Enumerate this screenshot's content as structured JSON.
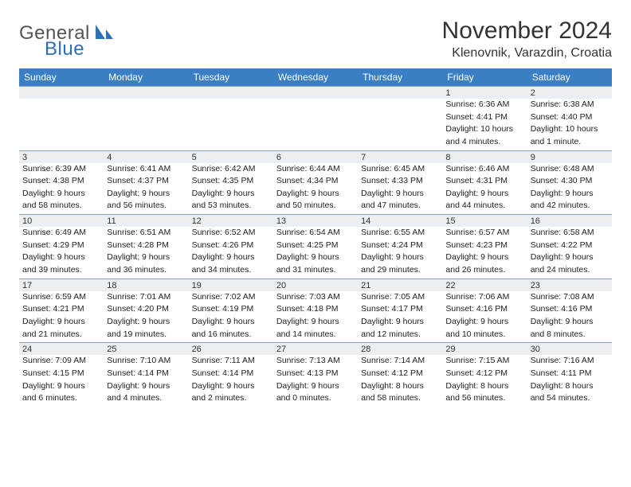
{
  "logo": {
    "general": "General",
    "blue": "Blue"
  },
  "title": "November 2024",
  "location": "Klenovnik, Varazdin, Croatia",
  "colors": {
    "header_bg": "#3a7fc4",
    "header_fg": "#ffffff",
    "daynum_bg": "#eceff2",
    "border": "#8aa2b8",
    "logo_blue": "#2d6fb6"
  },
  "weekdays": [
    "Sunday",
    "Monday",
    "Tuesday",
    "Wednesday",
    "Thursday",
    "Friday",
    "Saturday"
  ],
  "weeks": [
    [
      null,
      null,
      null,
      null,
      null,
      {
        "n": "1",
        "sr": "Sunrise: 6:36 AM",
        "ss": "Sunset: 4:41 PM",
        "d1": "Daylight: 10 hours",
        "d2": "and 4 minutes."
      },
      {
        "n": "2",
        "sr": "Sunrise: 6:38 AM",
        "ss": "Sunset: 4:40 PM",
        "d1": "Daylight: 10 hours",
        "d2": "and 1 minute."
      }
    ],
    [
      {
        "n": "3",
        "sr": "Sunrise: 6:39 AM",
        "ss": "Sunset: 4:38 PM",
        "d1": "Daylight: 9 hours",
        "d2": "and 58 minutes."
      },
      {
        "n": "4",
        "sr": "Sunrise: 6:41 AM",
        "ss": "Sunset: 4:37 PM",
        "d1": "Daylight: 9 hours",
        "d2": "and 56 minutes."
      },
      {
        "n": "5",
        "sr": "Sunrise: 6:42 AM",
        "ss": "Sunset: 4:35 PM",
        "d1": "Daylight: 9 hours",
        "d2": "and 53 minutes."
      },
      {
        "n": "6",
        "sr": "Sunrise: 6:44 AM",
        "ss": "Sunset: 4:34 PM",
        "d1": "Daylight: 9 hours",
        "d2": "and 50 minutes."
      },
      {
        "n": "7",
        "sr": "Sunrise: 6:45 AM",
        "ss": "Sunset: 4:33 PM",
        "d1": "Daylight: 9 hours",
        "d2": "and 47 minutes."
      },
      {
        "n": "8",
        "sr": "Sunrise: 6:46 AM",
        "ss": "Sunset: 4:31 PM",
        "d1": "Daylight: 9 hours",
        "d2": "and 44 minutes."
      },
      {
        "n": "9",
        "sr": "Sunrise: 6:48 AM",
        "ss": "Sunset: 4:30 PM",
        "d1": "Daylight: 9 hours",
        "d2": "and 42 minutes."
      }
    ],
    [
      {
        "n": "10",
        "sr": "Sunrise: 6:49 AM",
        "ss": "Sunset: 4:29 PM",
        "d1": "Daylight: 9 hours",
        "d2": "and 39 minutes."
      },
      {
        "n": "11",
        "sr": "Sunrise: 6:51 AM",
        "ss": "Sunset: 4:28 PM",
        "d1": "Daylight: 9 hours",
        "d2": "and 36 minutes."
      },
      {
        "n": "12",
        "sr": "Sunrise: 6:52 AM",
        "ss": "Sunset: 4:26 PM",
        "d1": "Daylight: 9 hours",
        "d2": "and 34 minutes."
      },
      {
        "n": "13",
        "sr": "Sunrise: 6:54 AM",
        "ss": "Sunset: 4:25 PM",
        "d1": "Daylight: 9 hours",
        "d2": "and 31 minutes."
      },
      {
        "n": "14",
        "sr": "Sunrise: 6:55 AM",
        "ss": "Sunset: 4:24 PM",
        "d1": "Daylight: 9 hours",
        "d2": "and 29 minutes."
      },
      {
        "n": "15",
        "sr": "Sunrise: 6:57 AM",
        "ss": "Sunset: 4:23 PM",
        "d1": "Daylight: 9 hours",
        "d2": "and 26 minutes."
      },
      {
        "n": "16",
        "sr": "Sunrise: 6:58 AM",
        "ss": "Sunset: 4:22 PM",
        "d1": "Daylight: 9 hours",
        "d2": "and 24 minutes."
      }
    ],
    [
      {
        "n": "17",
        "sr": "Sunrise: 6:59 AM",
        "ss": "Sunset: 4:21 PM",
        "d1": "Daylight: 9 hours",
        "d2": "and 21 minutes."
      },
      {
        "n": "18",
        "sr": "Sunrise: 7:01 AM",
        "ss": "Sunset: 4:20 PM",
        "d1": "Daylight: 9 hours",
        "d2": "and 19 minutes."
      },
      {
        "n": "19",
        "sr": "Sunrise: 7:02 AM",
        "ss": "Sunset: 4:19 PM",
        "d1": "Daylight: 9 hours",
        "d2": "and 16 minutes."
      },
      {
        "n": "20",
        "sr": "Sunrise: 7:03 AM",
        "ss": "Sunset: 4:18 PM",
        "d1": "Daylight: 9 hours",
        "d2": "and 14 minutes."
      },
      {
        "n": "21",
        "sr": "Sunrise: 7:05 AM",
        "ss": "Sunset: 4:17 PM",
        "d1": "Daylight: 9 hours",
        "d2": "and 12 minutes."
      },
      {
        "n": "22",
        "sr": "Sunrise: 7:06 AM",
        "ss": "Sunset: 4:16 PM",
        "d1": "Daylight: 9 hours",
        "d2": "and 10 minutes."
      },
      {
        "n": "23",
        "sr": "Sunrise: 7:08 AM",
        "ss": "Sunset: 4:16 PM",
        "d1": "Daylight: 9 hours",
        "d2": "and 8 minutes."
      }
    ],
    [
      {
        "n": "24",
        "sr": "Sunrise: 7:09 AM",
        "ss": "Sunset: 4:15 PM",
        "d1": "Daylight: 9 hours",
        "d2": "and 6 minutes."
      },
      {
        "n": "25",
        "sr": "Sunrise: 7:10 AM",
        "ss": "Sunset: 4:14 PM",
        "d1": "Daylight: 9 hours",
        "d2": "and 4 minutes."
      },
      {
        "n": "26",
        "sr": "Sunrise: 7:11 AM",
        "ss": "Sunset: 4:14 PM",
        "d1": "Daylight: 9 hours",
        "d2": "and 2 minutes."
      },
      {
        "n": "27",
        "sr": "Sunrise: 7:13 AM",
        "ss": "Sunset: 4:13 PM",
        "d1": "Daylight: 9 hours",
        "d2": "and 0 minutes."
      },
      {
        "n": "28",
        "sr": "Sunrise: 7:14 AM",
        "ss": "Sunset: 4:12 PM",
        "d1": "Daylight: 8 hours",
        "d2": "and 58 minutes."
      },
      {
        "n": "29",
        "sr": "Sunrise: 7:15 AM",
        "ss": "Sunset: 4:12 PM",
        "d1": "Daylight: 8 hours",
        "d2": "and 56 minutes."
      },
      {
        "n": "30",
        "sr": "Sunrise: 7:16 AM",
        "ss": "Sunset: 4:11 PM",
        "d1": "Daylight: 8 hours",
        "d2": "and 54 minutes."
      }
    ]
  ]
}
